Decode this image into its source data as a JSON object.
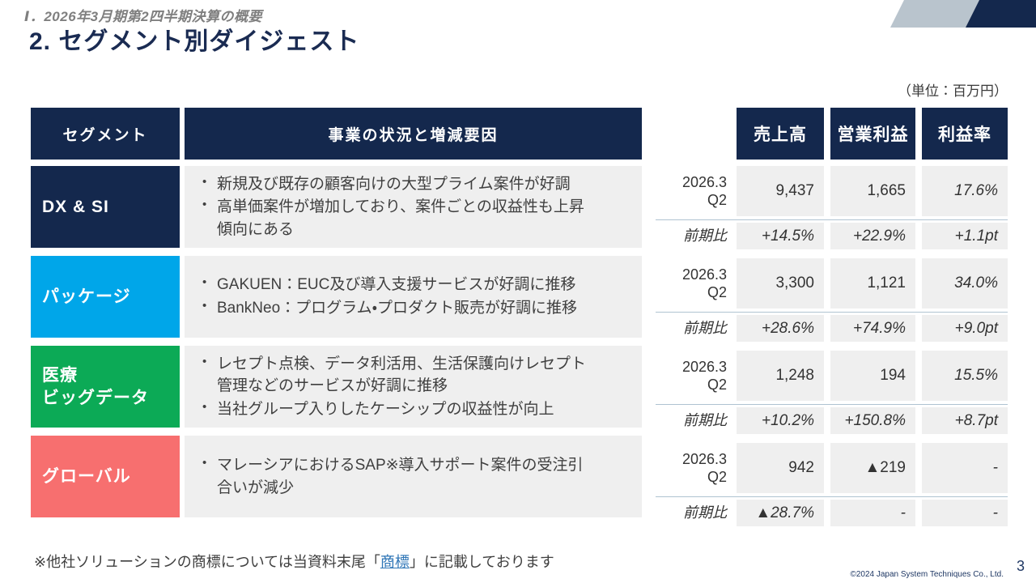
{
  "page": {
    "section_label": "Ⅰ．2026年3月期第2四半期決算の概要",
    "title": "2. セグメント別ダイジェスト",
    "unit_note": "（単位：百万円）",
    "footnote": {
      "prefix": "※他社ソリューションの商標については当資料末尾「",
      "link": "商標",
      "suffix": "」に記載しております"
    },
    "copyright": "©2024 Japan System Techniques Co., Ltd.",
    "page_number": "3"
  },
  "colors": {
    "navy": "#14284d",
    "cyan": "#00a6e9",
    "green": "#0caa56",
    "coral": "#f76f6f",
    "cell_gray": "#efefef",
    "divider_blue_gray": "#afc3d1",
    "deco_gray": "#b9c4cd",
    "link_blue": "#2e75b6"
  },
  "segment_table": {
    "headers": {
      "segment": "セグメント",
      "description": "事業の状況と増減要因"
    },
    "rows": [
      {
        "name": "DX & SI",
        "name_lines": [
          "DX & SI"
        ],
        "color": "#14284d",
        "bullets": [
          [
            "新規及び既存の顧客向けの大型プライム案件が好調"
          ],
          [
            "高単価案件が増加しており、案件ごとの収益性も上昇",
            "傾向にある"
          ]
        ]
      },
      {
        "name": "パッケージ",
        "name_lines": [
          "パッケージ"
        ],
        "color": "#00a6e9",
        "bullets": [
          [
            "GAKUEN：EUC及び導入支援サービスが好調に推移"
          ],
          [
            "BankNeo：プログラム・プロダクト販売が好調に推移"
          ]
        ]
      },
      {
        "name": "医療ビッグデータ",
        "name_lines": [
          "医療",
          "ビッグデータ"
        ],
        "color": "#0caa56",
        "bullets": [
          [
            "レセプト点検、データ利活用、生活保護向けレセプト",
            "管理などのサービスが好調に推移"
          ],
          [
            "当社グループ入りしたケーシップの収益性が向上"
          ]
        ]
      },
      {
        "name": "グローバル",
        "name_lines": [
          "グローバル"
        ],
        "color": "#f76f6f",
        "bullets": [
          [
            "マレーシアにおけるSAP※導入サポート案件の受注引",
            "合いが減少"
          ]
        ]
      }
    ]
  },
  "metrics_table": {
    "columns": [
      "売上高",
      "営業利益",
      "利益率"
    ],
    "q2_label": [
      "2026.3",
      "Q2"
    ],
    "yoy_label": "前期比",
    "rows": [
      {
        "segment": "DX & SI",
        "q2": {
          "sales": "9,437",
          "profit": "1,665",
          "margin": "17.6%"
        },
        "yoy": {
          "sales": "+14.5%",
          "profit": "+22.9%",
          "margin": "+1.1pt"
        }
      },
      {
        "segment": "パッケージ",
        "q2": {
          "sales": "3,300",
          "profit": "1,121",
          "margin": "34.0%"
        },
        "yoy": {
          "sales": "+28.6%",
          "profit": "+74.9%",
          "margin": "+9.0pt"
        }
      },
      {
        "segment": "医療ビッグデータ",
        "q2": {
          "sales": "1,248",
          "profit": "194",
          "margin": "15.5%"
        },
        "yoy": {
          "sales": "+10.2%",
          "profit": "+150.8%",
          "margin": "+8.7pt"
        }
      },
      {
        "segment": "グローバル",
        "q2": {
          "sales": "942",
          "profit": "▲219",
          "margin": "-"
        },
        "yoy": {
          "sales": "▲28.7%",
          "profit": "-",
          "margin": "-"
        }
      }
    ]
  }
}
